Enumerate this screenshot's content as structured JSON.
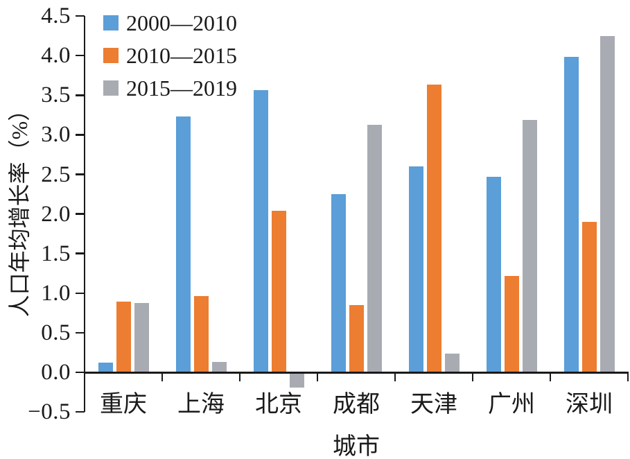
{
  "chart_data": {
    "type": "bar",
    "title": "",
    "xlabel": "城市",
    "ylabel": "人口年均增长率（%）",
    "categories": [
      "重庆",
      "上海",
      "北京",
      "成都",
      "天津",
      "广州",
      "深圳"
    ],
    "series": [
      {
        "name": "2000—2010",
        "color": "#5b9ed8",
        "values": [
          0.12,
          3.23,
          3.56,
          2.25,
          2.6,
          2.47,
          3.98
        ]
      },
      {
        "name": "2010—2015",
        "color": "#ec7d31",
        "values": [
          0.89,
          0.96,
          2.04,
          0.85,
          3.63,
          1.22,
          1.9
        ]
      },
      {
        "name": "2015—2019",
        "color": "#a8abb2",
        "values": [
          0.88,
          0.13,
          -0.19,
          3.13,
          0.24,
          3.19,
          4.25
        ]
      }
    ],
    "ylim": [
      -0.5,
      4.5
    ],
    "ytick_step": 0.5,
    "ytick_labels": [
      "−0.5",
      "0.0",
      "0.5",
      "1.0",
      "1.5",
      "2.0",
      "2.5",
      "3.0",
      "3.5",
      "4.0",
      "4.5"
    ],
    "grid": false,
    "legend_position": "upper-left",
    "axis_color": "#1a1a1a"
  }
}
